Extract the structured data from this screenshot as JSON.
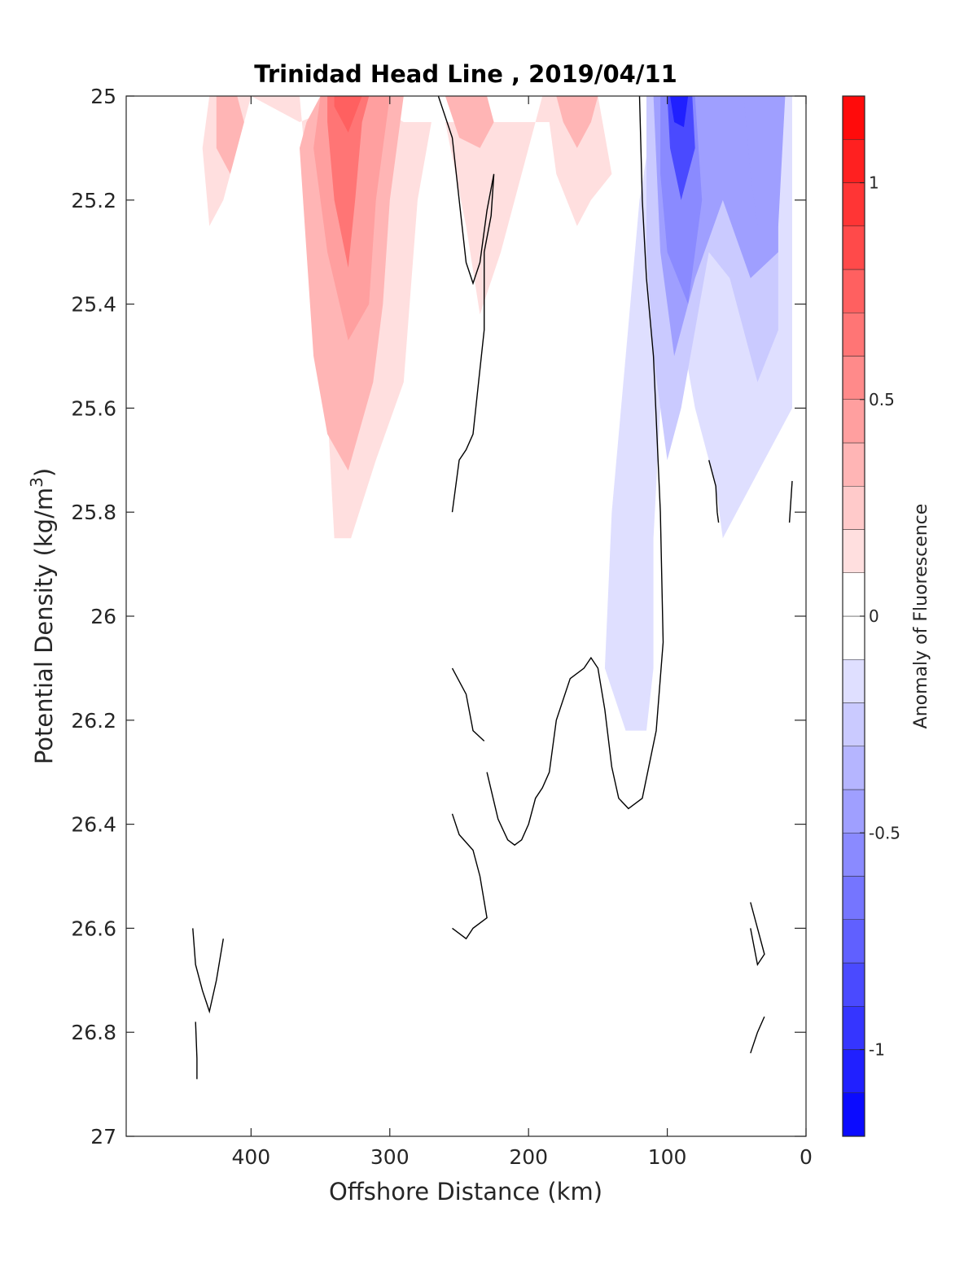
{
  "chart_data": {
    "type": "contour",
    "title": "Trinidad Head Line , 2019/04/11",
    "xlabel": "Offshore Distance (km)",
    "ylabel_main": "Potential Density (kg/m",
    "ylabel_sup": "3",
    "ylabel_close": ")",
    "colorbar_label": "Anomaly of Fluorescence",
    "xlim": [
      490,
      0
    ],
    "x_reversed": true,
    "ylim": [
      25,
      27
    ],
    "y_reversed": true,
    "x_ticks": [
      400,
      300,
      200,
      100,
      0
    ],
    "x_tick_labels": [
      "400",
      "300",
      "200",
      "100",
      "0"
    ],
    "y_ticks": [
      25,
      25.2,
      25.4,
      25.6,
      25.8,
      26,
      26.2,
      26.4,
      26.6,
      26.8,
      27
    ],
    "y_tick_labels": [
      "25",
      "25.2",
      "25.4",
      "25.6",
      "25.8",
      "26",
      "26.2",
      "26.4",
      "26.6",
      "26.8",
      "27"
    ],
    "colorbar_ticks": [
      1,
      0.5,
      0,
      -0.5,
      -1
    ],
    "colorbar_tick_labels": [
      "1",
      "0.5",
      "0",
      "-0.5",
      "-1"
    ],
    "color_range": [
      -1.2,
      1.2
    ],
    "color_levels": 24,
    "colormap": "blue-white-red",
    "colors": {
      "positive": "#ff0000",
      "negative": "#0000ff",
      "zero": "#ffffff",
      "contour_line": "#000000"
    },
    "filled_regions": [
      {
        "anomaly": 0.15,
        "polygon": [
          [
            435,
            25.1
          ],
          [
            430,
            25.0
          ],
          [
            385,
            25.0
          ],
          [
            365,
            25.0
          ],
          [
            355,
            25.3
          ],
          [
            345,
            25.6
          ],
          [
            340,
            25.85
          ],
          [
            328,
            25.85
          ],
          [
            310,
            25.7
          ],
          [
            290,
            25.55
          ],
          [
            280,
            25.2
          ],
          [
            270,
            25.05
          ],
          [
            260,
            25.05
          ],
          [
            245,
            25.25
          ],
          [
            235,
            25.42
          ],
          [
            220,
            25.3
          ],
          [
            200,
            25.1
          ],
          [
            190,
            25.0
          ],
          [
            150,
            25.0
          ],
          [
            140,
            25.15
          ],
          [
            155,
            25.2
          ],
          [
            165,
            25.25
          ],
          [
            180,
            25.15
          ],
          [
            185,
            25.05
          ],
          [
            200,
            25.05
          ],
          [
            225,
            25.05
          ],
          [
            255,
            25.05
          ],
          [
            290,
            25.05
          ],
          [
            320,
            25.0
          ],
          [
            365,
            25.05
          ],
          [
            400,
            25.0
          ],
          [
            420,
            25.2
          ],
          [
            430,
            25.25
          ]
        ]
      },
      {
        "anomaly": 0.3,
        "polygon": [
          [
            365,
            25.1
          ],
          [
            360,
            25.05
          ],
          [
            350,
            25.0
          ],
          [
            290,
            25.0
          ],
          [
            300,
            25.2
          ],
          [
            305,
            25.4
          ],
          [
            312,
            25.55
          ],
          [
            330,
            25.72
          ],
          [
            345,
            25.65
          ],
          [
            355,
            25.5
          ],
          [
            360,
            25.3
          ]
        ]
      },
      {
        "anomaly": 0.3,
        "polygon": [
          [
            260,
            25.0
          ],
          [
            230,
            25.0
          ],
          [
            225,
            25.05
          ],
          [
            235,
            25.1
          ],
          [
            250,
            25.08
          ]
        ]
      },
      {
        "anomaly": 0.3,
        "polygon": [
          [
            180,
            25.0
          ],
          [
            150,
            25.0
          ],
          [
            155,
            25.05
          ],
          [
            165,
            25.1
          ],
          [
            175,
            25.05
          ]
        ]
      },
      {
        "anomaly": 0.3,
        "polygon": [
          [
            425,
            25.0
          ],
          [
            410,
            25.0
          ],
          [
            405,
            25.05
          ],
          [
            415,
            25.15
          ],
          [
            425,
            25.1
          ]
        ]
      },
      {
        "anomaly": 0.45,
        "polygon": [
          [
            355,
            25.1
          ],
          [
            350,
            25.0
          ],
          [
            300,
            25.0
          ],
          [
            310,
            25.2
          ],
          [
            315,
            25.4
          ],
          [
            330,
            25.47
          ],
          [
            345,
            25.3
          ],
          [
            350,
            25.2
          ]
        ]
      },
      {
        "anomaly": 0.6,
        "polygon": [
          [
            345,
            25.05
          ],
          [
            345,
            25.0
          ],
          [
            315,
            25.0
          ],
          [
            320,
            25.05
          ],
          [
            325,
            25.2
          ],
          [
            330,
            25.33
          ],
          [
            340,
            25.2
          ]
        ]
      },
      {
        "anomaly": 0.7,
        "polygon": [
          [
            340,
            25.02
          ],
          [
            340,
            25.0
          ],
          [
            320,
            25.0
          ],
          [
            330,
            25.07
          ]
        ]
      },
      {
        "anomaly": -0.15,
        "polygon": [
          [
            115,
            25.0
          ],
          [
            10,
            25.0
          ],
          [
            10,
            25.6
          ],
          [
            30,
            25.7
          ],
          [
            60,
            25.85
          ],
          [
            65,
            25.75
          ],
          [
            80,
            25.6
          ],
          [
            90,
            25.45
          ],
          [
            100,
            25.2
          ],
          [
            105,
            25.1
          ],
          [
            108,
            25.0
          ],
          [
            120,
            25.2
          ],
          [
            130,
            25.5
          ],
          [
            140,
            25.8
          ],
          [
            145,
            26.1
          ],
          [
            130,
            26.22
          ],
          [
            115,
            26.22
          ],
          [
            110,
            26.1
          ],
          [
            110,
            25.85
          ],
          [
            105,
            25.6
          ]
        ]
      },
      {
        "anomaly": -0.3,
        "polygon": [
          [
            115,
            25.0
          ],
          [
            20,
            25.0
          ],
          [
            20,
            25.45
          ],
          [
            35,
            25.55
          ],
          [
            55,
            25.35
          ],
          [
            70,
            25.3
          ],
          [
            80,
            25.45
          ],
          [
            90,
            25.6
          ],
          [
            100,
            25.7
          ],
          [
            110,
            25.5
          ],
          [
            115,
            25.3
          ]
        ]
      },
      {
        "anomaly": -0.45,
        "polygon": [
          [
            110,
            25.0
          ],
          [
            20,
            25.0
          ],
          [
            20,
            25.3
          ],
          [
            40,
            25.35
          ],
          [
            60,
            25.2
          ],
          [
            80,
            25.35
          ],
          [
            95,
            25.5
          ],
          [
            105,
            25.3
          ]
        ]
      },
      {
        "anomaly": -0.6,
        "polygon": [
          [
            105,
            25.0
          ],
          [
            80,
            25.0
          ],
          [
            75,
            25.2
          ],
          [
            85,
            25.4
          ],
          [
            100,
            25.3
          ],
          [
            105,
            25.15
          ]
        ]
      },
      {
        "anomaly": -0.45,
        "polygon": [
          [
            45,
            25.0
          ],
          [
            15,
            25.0
          ],
          [
            20,
            25.25
          ],
          [
            35,
            25.25
          ],
          [
            40,
            25.15
          ]
        ]
      },
      {
        "anomaly": -0.8,
        "polygon": [
          [
            100,
            25.0
          ],
          [
            82,
            25.0
          ],
          [
            80,
            25.1
          ],
          [
            90,
            25.2
          ],
          [
            98,
            25.1
          ]
        ]
      },
      {
        "anomaly": -1.0,
        "polygon": [
          [
            98,
            25.0
          ],
          [
            85,
            25.0
          ],
          [
            88,
            25.06
          ],
          [
            95,
            25.05
          ]
        ]
      }
    ],
    "zero_contours": [
      [
        [
          265,
          25.0
        ],
        [
          255,
          25.08
        ],
        [
          250,
          25.2
        ],
        [
          245,
          25.32
        ],
        [
          240,
          25.36
        ],
        [
          235,
          25.32
        ],
        [
          230,
          25.22
        ],
        [
          225,
          25.15
        ],
        [
          227,
          25.23
        ],
        [
          232,
          25.3
        ],
        [
          232,
          25.45
        ],
        [
          236,
          25.55
        ],
        [
          240,
          25.65
        ],
        [
          245,
          25.68
        ],
        [
          250,
          25.7
        ],
        [
          255,
          25.8
        ]
      ],
      [
        [
          120,
          25.0
        ],
        [
          118,
          25.2
        ],
        [
          115,
          25.35
        ],
        [
          110,
          25.5
        ],
        [
          105,
          25.8
        ],
        [
          103,
          26.05
        ],
        [
          108,
          26.22
        ],
        [
          118,
          26.35
        ],
        [
          128,
          26.37
        ],
        [
          135,
          26.35
        ],
        [
          140,
          26.29
        ],
        [
          145,
          26.18
        ],
        [
          150,
          26.1
        ],
        [
          155,
          26.08
        ],
        [
          160,
          26.1
        ],
        [
          170,
          26.12
        ],
        [
          180,
          26.2
        ],
        [
          185,
          26.3
        ],
        [
          190,
          26.33
        ],
        [
          195,
          26.35
        ],
        [
          200,
          26.4
        ],
        [
          205,
          26.43
        ],
        [
          210,
          26.44
        ],
        [
          215,
          26.43
        ],
        [
          222,
          26.39
        ],
        [
          230,
          26.3
        ]
      ],
      [
        [
          255,
          26.1
        ],
        [
          245,
          26.15
        ],
        [
          240,
          26.22
        ],
        [
          232,
          26.24
        ]
      ],
      [
        [
          255,
          26.38
        ],
        [
          250,
          26.42
        ],
        [
          240,
          26.45
        ],
        [
          235,
          26.5
        ],
        [
          230,
          26.58
        ],
        [
          240,
          26.6
        ],
        [
          245,
          26.62
        ],
        [
          255,
          26.6
        ]
      ],
      [
        [
          420,
          26.62
        ],
        [
          425,
          26.7
        ],
        [
          430,
          26.76
        ],
        [
          435,
          26.72
        ],
        [
          440,
          26.67
        ],
        [
          442,
          26.6
        ]
      ],
      [
        [
          440,
          26.78
        ],
        [
          439,
          26.85
        ],
        [
          439,
          26.89
        ]
      ],
      [
        [
          70,
          25.7
        ],
        [
          65,
          25.75
        ],
        [
          64,
          25.8
        ],
        [
          63,
          25.82
        ]
      ],
      [
        [
          40,
          26.55
        ],
        [
          35,
          26.6
        ],
        [
          30,
          26.65
        ],
        [
          35,
          26.67
        ],
        [
          40,
          26.6
        ]
      ],
      [
        [
          30,
          26.77
        ],
        [
          35,
          26.8
        ],
        [
          40,
          26.84
        ]
      ],
      [
        [
          10,
          25.74
        ],
        [
          12,
          25.82
        ]
      ]
    ]
  }
}
